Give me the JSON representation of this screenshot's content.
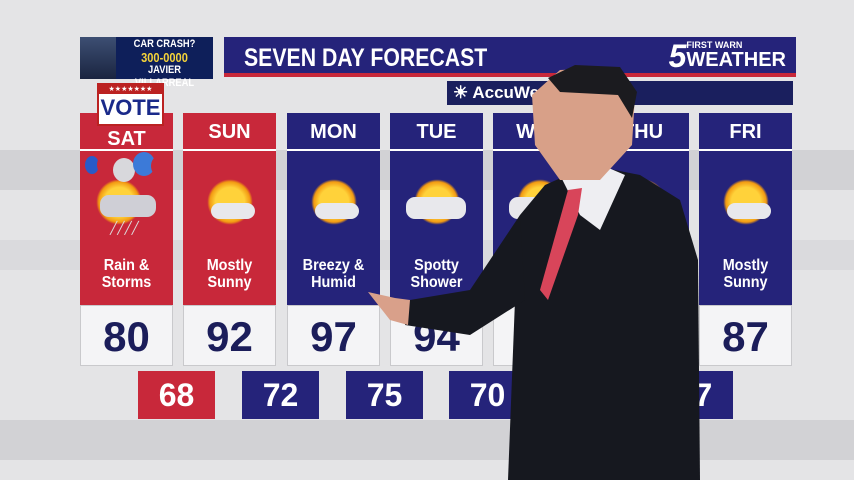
{
  "ad": {
    "line1": "CAR CRASH?",
    "phone": "300-0000",
    "name": "JAVIER VILLARREAL"
  },
  "header": {
    "title": "SEVEN DAY FORECAST",
    "logo_number": "5",
    "logo_top": "FIRST WARN",
    "logo_bottom": "WEATHER",
    "sponsor": "AccuWea"
  },
  "vote_badge": "VOTE",
  "colors": {
    "red": "#c8283a",
    "navy": "#25237a"
  },
  "days": [
    {
      "day": "SAT",
      "desc": "Rain & Storms",
      "high": "80",
      "low": "68",
      "icon": "sun-cloud-rain-icon",
      "color": "#c8283a"
    },
    {
      "day": "SUN",
      "desc": "Mostly Sunny",
      "high": "92",
      "low": "72",
      "icon": "mostly-sunny-icon",
      "color": "#c8283a"
    },
    {
      "day": "MON",
      "desc": "Breezy & Humid",
      "high": "97",
      "low": "75",
      "icon": "mostly-sunny-icon",
      "color": "#25237a"
    },
    {
      "day": "TUE",
      "desc": "Spotty Shower",
      "high": "94",
      "low": "70",
      "icon": "partly-cloudy-icon",
      "color": "#25237a"
    },
    {
      "day": "WED",
      "desc": "",
      "high": "",
      "low": "",
      "icon": "partly-cloudy-icon",
      "color": "#25237a"
    },
    {
      "day": "THU",
      "desc": "",
      "high": "",
      "low": "67",
      "icon": "partly-cloudy-icon",
      "color": "#25237a"
    },
    {
      "day": "FRI",
      "desc": "Mostly Sunny",
      "high": "87",
      "low": "",
      "icon": "mostly-sunny-icon",
      "color": "#25237a"
    }
  ]
}
